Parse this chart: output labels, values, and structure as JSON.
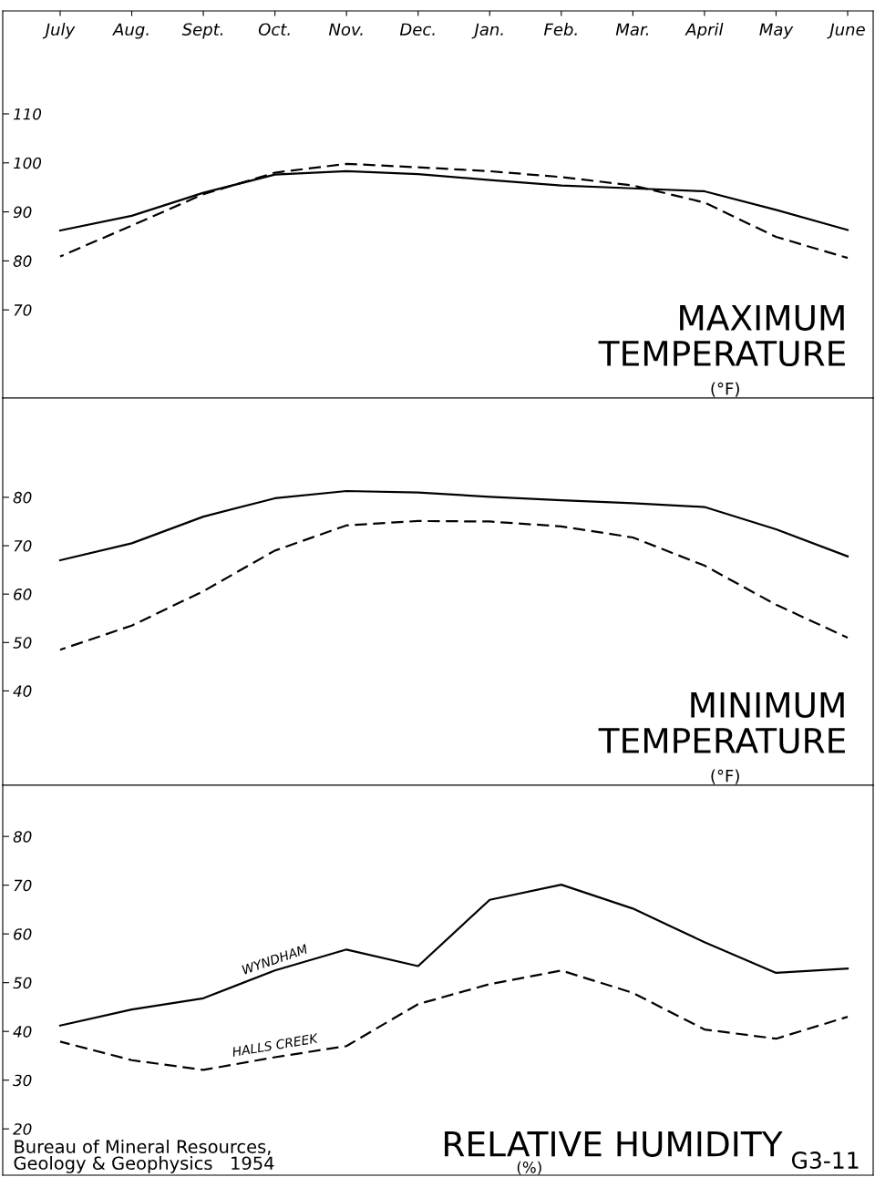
{
  "chart_data": [
    {
      "type": "line",
      "title": "MAXIMUM TEMPERATURE",
      "subtitle": "(°F)",
      "categories": [
        "July",
        "Aug.",
        "Sept.",
        "Oct.",
        "Nov.",
        "Dec.",
        "Jan.",
        "Feb.",
        "Mar.",
        "April",
        "May",
        "June"
      ],
      "series": [
        {
          "color": "#000000",
          "line_style": "solid",
          "values": [
            86.2,
            89.2,
            93.9,
            97.6,
            98.3,
            97.7,
            96.5,
            95.4,
            94.8,
            94.2,
            90.4,
            86.3
          ]
        },
        {
          "color": "#000000",
          "line_style": "dashed",
          "values": [
            80.9,
            87.2,
            93.6,
            98,
            99.8,
            99.1,
            98.3,
            97.1,
            95.4,
            91.9,
            84.9,
            80.6
          ]
        }
      ],
      "ylim": [
        52,
        131
      ],
      "yticks": [
        70,
        80,
        90,
        100,
        110
      ],
      "grid": false,
      "legend": false
    },
    {
      "type": "line",
      "title": "MINIMUM TEMPERATURE",
      "subtitle": "(°F)",
      "categories": [
        null,
        null,
        null,
        null,
        null,
        null,
        null,
        null,
        null,
        null,
        null,
        null
      ],
      "series": [
        {
          "color": "#000000",
          "line_style": "solid",
          "values": [
            67,
            70.5,
            76,
            79.8,
            81.3,
            81,
            80.1,
            79.4,
            78.8,
            78,
            73.4,
            67.8
          ]
        },
        {
          "color": "#000000",
          "line_style": "dashed",
          "values": [
            48.5,
            53.5,
            60.6,
            69,
            74.2,
            75.1,
            75,
            74,
            71.7,
            65.9,
            57.8,
            51
          ]
        }
      ],
      "ylim": [
        20.5,
        100.5
      ],
      "yticks": [
        40,
        50,
        60,
        70,
        80
      ],
      "grid": false,
      "legend": false,
      "tick_labels": "y"
    },
    {
      "type": "line",
      "title": "RELATIVE HUMIDITY",
      "subtitle": "(%)",
      "categories": [
        null,
        null,
        null,
        null,
        null,
        null,
        null,
        null,
        null,
        null,
        null,
        null
      ],
      "series": [
        {
          "name": "WYNDHAM",
          "color": "#000000",
          "line_style": "solid",
          "values": [
            41.2,
            44.5,
            46.8,
            52.5,
            56.8,
            53.4,
            67,
            70.1,
            65.2,
            58.3,
            52,
            52.9
          ]
        },
        {
          "name": "HALLS CREEK",
          "color": "#000000",
          "line_style": "dashed",
          "values": [
            37.9,
            34.1,
            32.1,
            34.7,
            37,
            45.6,
            49.7,
            52.5,
            47.9,
            40.4,
            38.5,
            43
          ]
        }
      ],
      "ylim": [
        10.5,
        90.5
      ],
      "yticks": [
        20,
        30,
        40,
        50,
        60,
        70,
        80
      ],
      "grid": false,
      "legend": false,
      "tick_labels": "y",
      "annotations": [
        "Bureau of Mineral Resources,\nGeology & Geophysics   1954",
        "G3-11"
      ]
    }
  ]
}
